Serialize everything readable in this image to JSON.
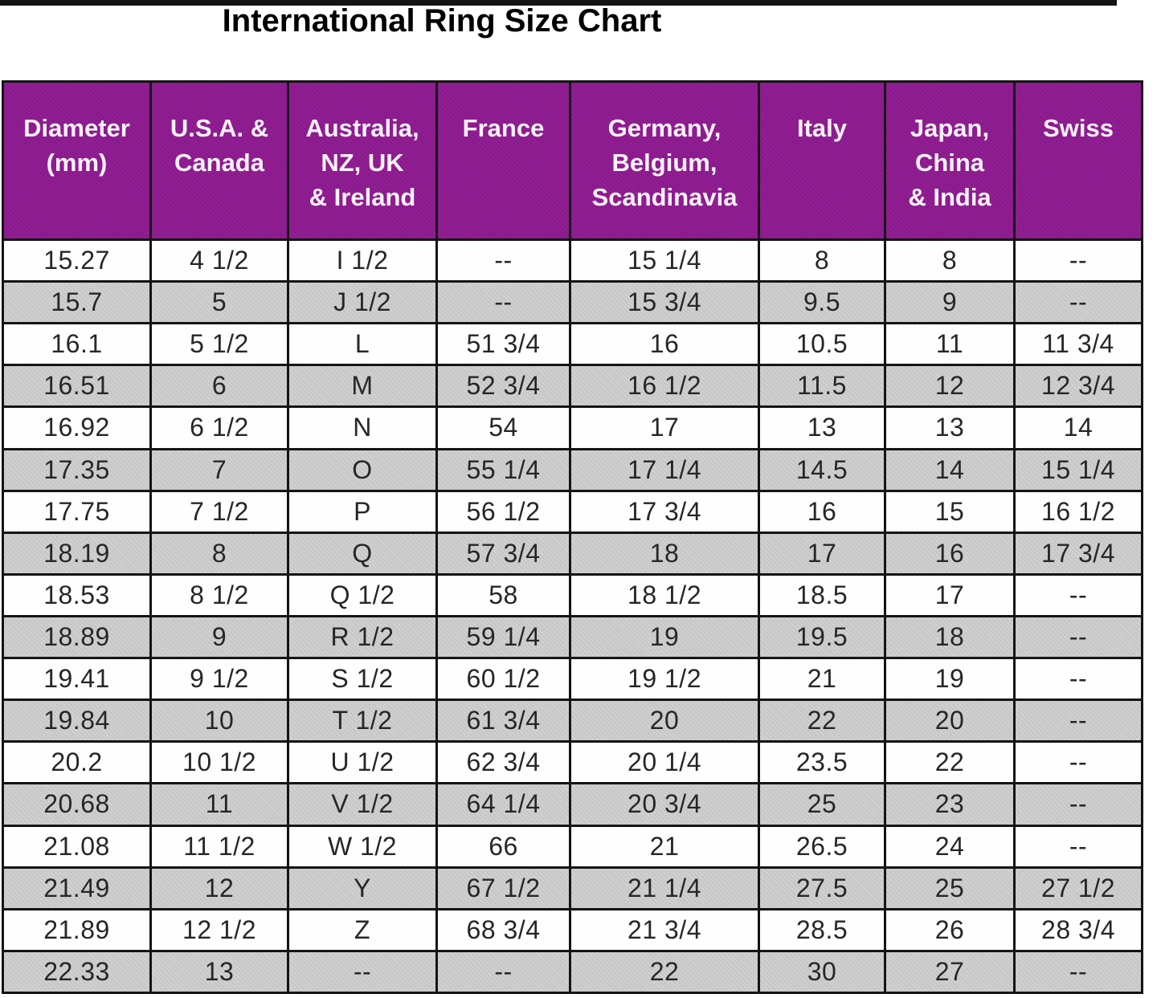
{
  "title": "International Ring Size Chart",
  "table": {
    "display_headers": [
      "Diameter\n(mm)",
      "U.S.A. &\nCanada",
      "Australia,\nNZ, UK\n& Ireland",
      "France",
      "Germany,\nBelgium,\nScandinavia",
      "Italy",
      "Japan,\nChina\n& India",
      "Swiss"
    ]
  },
  "chart_data": {
    "type": "table",
    "title": "International Ring Size Chart",
    "columns": [
      "Diameter (mm)",
      "U.S.A. & Canada",
      "Australia, NZ, UK & Ireland",
      "France",
      "Germany, Belgium, Scandinavia",
      "Italy",
      "Japan, China & India",
      "Swiss"
    ],
    "rows": [
      [
        "15.27",
        "4 1/2",
        "I 1/2",
        "--",
        "15 1/4",
        "8",
        "8",
        "--"
      ],
      [
        "15.7",
        "5",
        "J 1/2",
        "--",
        "15 3/4",
        "9.5",
        "9",
        "--"
      ],
      [
        "16.1",
        "5 1/2",
        "L",
        "51 3/4",
        "16",
        "10.5",
        "11",
        "11 3/4"
      ],
      [
        "16.51",
        "6",
        "M",
        "52 3/4",
        "16 1/2",
        "11.5",
        "12",
        "12 3/4"
      ],
      [
        "16.92",
        "6 1/2",
        "N",
        "54",
        "17",
        "13",
        "13",
        "14"
      ],
      [
        "17.35",
        "7",
        "O",
        "55 1/4",
        "17 1/4",
        "14.5",
        "14",
        "15 1/4"
      ],
      [
        "17.75",
        "7 1/2",
        "P",
        "56 1/2",
        "17 3/4",
        "16",
        "15",
        "16 1/2"
      ],
      [
        "18.19",
        "8",
        "Q",
        "57 3/4",
        "18",
        "17",
        "16",
        "17 3/4"
      ],
      [
        "18.53",
        "8 1/2",
        "Q 1/2",
        "58",
        "18 1/2",
        "18.5",
        "17",
        "--"
      ],
      [
        "18.89",
        "9",
        "R 1/2",
        "59 1/4",
        "19",
        "19.5",
        "18",
        "--"
      ],
      [
        "19.41",
        "9 1/2",
        "S 1/2",
        "60 1/2",
        "19 1/2",
        "21",
        "19",
        "--"
      ],
      [
        "19.84",
        "10",
        "T 1/2",
        "61 3/4",
        "20",
        "22",
        "20",
        "--"
      ],
      [
        "20.2",
        "10 1/2",
        "U 1/2",
        "62 3/4",
        "20 1/4",
        "23.5",
        "22",
        "--"
      ],
      [
        "20.68",
        "11",
        "V 1/2",
        "64 1/4",
        "20 3/4",
        "25",
        "23",
        "--"
      ],
      [
        "21.08",
        "11 1/2",
        "W 1/2",
        "66",
        "21",
        "26.5",
        "24",
        "--"
      ],
      [
        "21.49",
        "12",
        "Y",
        "67 1/2",
        "21 1/4",
        "27.5",
        "25",
        "27 1/2"
      ],
      [
        "21.89",
        "12 1/2",
        "Z",
        "68 3/4",
        "21 3/4",
        "28.5",
        "26",
        "28 3/4"
      ],
      [
        "22.33",
        "13",
        "--",
        "--",
        "22",
        "30",
        "27",
        "--"
      ]
    ]
  },
  "colors": {
    "header_bg": "#8e1a90",
    "header_text": "#fdf2fd",
    "row_bg": "#fefefe",
    "row_alt_bg": "#cacaca",
    "cell_text": "#262626",
    "border": "#141414",
    "title_text": "#000000",
    "page_bg": "#ffffff"
  }
}
